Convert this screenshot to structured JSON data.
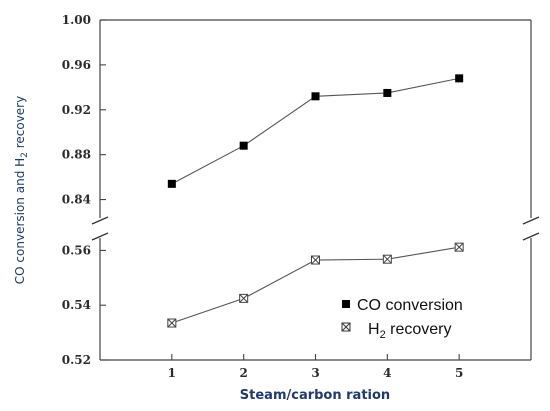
{
  "chart_data": {
    "type": "scatter",
    "xlabel": "Steam/carbon ration",
    "ylabel_parts": [
      "CO conversion  and H",
      "2",
      " recovery"
    ],
    "x_ticks": [
      1,
      2,
      3,
      4,
      5
    ],
    "xlim": [
      0,
      6
    ],
    "y_upper": {
      "range": [
        0.82,
        1.0
      ],
      "ticks": [
        "0.84",
        "0.88",
        "0.92",
        "0.96",
        "1.00"
      ]
    },
    "y_lower": {
      "range": [
        0.52,
        0.566
      ],
      "ticks": [
        "0.52",
        "0.54",
        "0.56"
      ]
    },
    "axis_break": true,
    "legend_position": "bottom-right",
    "series": [
      {
        "name": "CO conversion",
        "legend_parts": [
          "CO conversion"
        ],
        "marker": "filled-square",
        "color": "#000000",
        "x": [
          1,
          2,
          3,
          4,
          5
        ],
        "y": [
          0.854,
          0.888,
          0.932,
          0.935,
          0.948
        ]
      },
      {
        "name": "H2 recovery",
        "legend_parts": [
          "H",
          "2",
          " recovery"
        ],
        "marker": "crossed-square",
        "color": "#444444",
        "x": [
          1,
          2,
          3,
          4,
          5
        ],
        "y": [
          0.5335,
          0.5425,
          0.5565,
          0.5568,
          0.5612
        ]
      }
    ]
  }
}
